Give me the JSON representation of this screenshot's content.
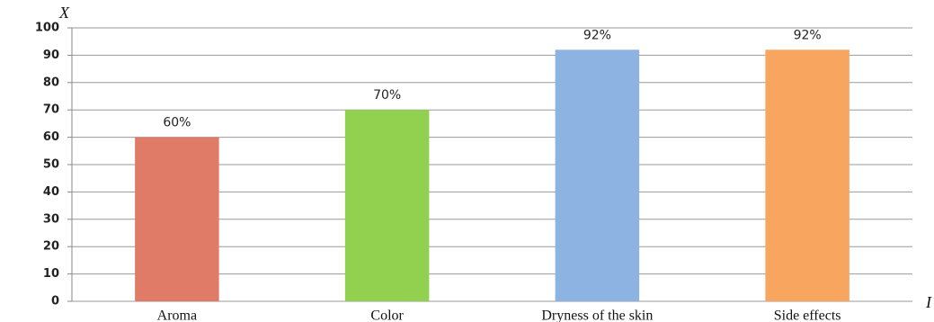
{
  "chart_data": {
    "type": "bar",
    "y_label": "X",
    "x_label": "I",
    "categories": [
      "Aroma",
      "Color",
      "Dryness of the skin",
      "Side effects"
    ],
    "series": [
      {
        "values": [
          60,
          70,
          92,
          92
        ],
        "value_labels": [
          "60%",
          "70%",
          "92%",
          "92%"
        ],
        "colors": [
          "#e07b67",
          "#92d050",
          "#8db3e2",
          "#f8a55f"
        ]
      }
    ],
    "ylim": [
      0,
      100
    ],
    "yticks": [
      0,
      10,
      20,
      30,
      40,
      50,
      60,
      70,
      80,
      90,
      100
    ],
    "grid": true
  }
}
